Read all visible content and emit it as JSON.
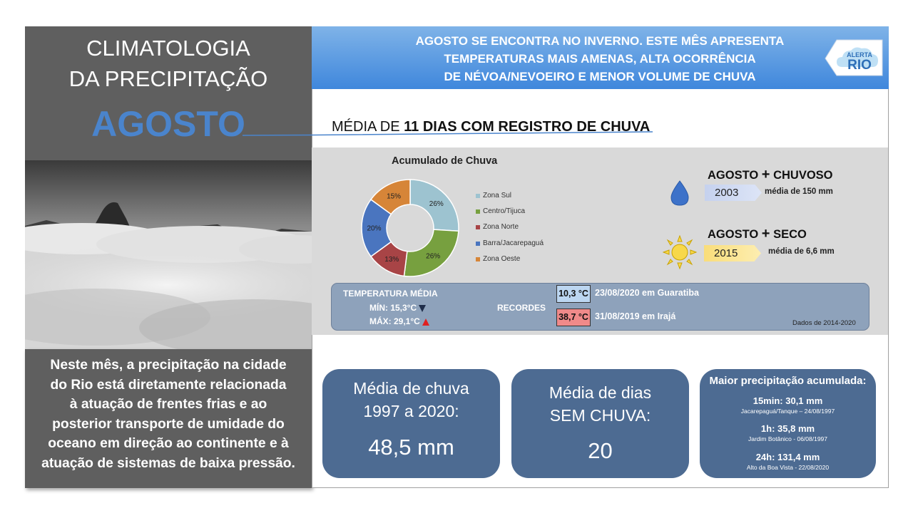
{
  "left": {
    "title_line1": "CLIMATOLOGIA",
    "title_line2": "DA PRECIPITAÇÃO",
    "month": "AGOSTO",
    "description_lines": [
      "Neste mês, a precipitação na cidade",
      "do Rio está diretamente relacionada",
      "à atuação de frentes frias e ao",
      "posterior transporte de umidade do",
      "oceano em direção ao continente e à",
      "atuação de sistemas de baixa pressão."
    ]
  },
  "banner": {
    "lines": [
      "AGOSTO SE ENCONTRA NO INVERNO. ESTE MÊS APRESENTA",
      "TEMPERATURAS MAIS AMENAS, ALTA OCORRÊNCIA",
      "DE NÉVOA/NEVOEIRO E MENOR VOLUME DE CHUVA"
    ],
    "logo_top": "ALERTA",
    "logo_bottom": "RIO",
    "logo_icon": "cloud-logo-icon"
  },
  "headline": {
    "prefix": "MÉDIA DE ",
    "bold": "11 DIAS COM REGISTRO DE CHUVA"
  },
  "chart_data": {
    "type": "pie",
    "title": "Acumulado de Chuva",
    "categories": [
      "Zona Sul",
      "Centro/Tijuca",
      "Zona Norte",
      "Barra/Jacarepaguá",
      "Zona Oeste"
    ],
    "values": [
      26,
      26,
      13,
      20,
      15
    ],
    "labels": [
      "26%",
      "26%",
      "13%",
      "20%",
      "15%"
    ],
    "colors": [
      "#9dc3d0",
      "#77a03f",
      "#a84446",
      "#4a75bf",
      "#d68538"
    ],
    "legend_position": "right",
    "donut": true
  },
  "records": {
    "chuvoso": {
      "heading_prefix": "AGOSTO ",
      "plus": "+",
      "heading_suffix": " CHUVOSO",
      "year": "2003",
      "media": "média de 150 mm",
      "icon": "raindrop-icon"
    },
    "seco": {
      "heading_prefix": "AGOSTO ",
      "plus": "+",
      "heading_suffix": " SECO",
      "year": "2015",
      "media": "média de 6,6 mm",
      "icon": "sun-icon"
    }
  },
  "temperature": {
    "title": "TEMPERATURA MÉDIA",
    "min": "MÍN: 15,3°C",
    "max": "MÁX: 29,1°C",
    "records_label": "RECORDES",
    "record_min_value": "10,3 °C",
    "record_min_desc": "23/08/2020  em Guaratiba",
    "record_max_value": "38,7 °C",
    "record_max_desc": "31/08/2019  em Irajá",
    "source": "Dados de 2014-2020"
  },
  "cards": {
    "media_chuva": {
      "title_line1": "Média de chuva",
      "title_line2": "1997 a 2020:",
      "value": "48,5 mm"
    },
    "dias_sem_chuva": {
      "title_line1": "Média  de dias",
      "title_line2": "SEM CHUVA:",
      "value": "20"
    },
    "maior_precipitacao": {
      "title": "Maior precipitação acumulada:",
      "items": [
        {
          "value": "15min: 30,1 mm",
          "location": "Jacarepaguá/Tanque – 24/08/1997"
        },
        {
          "value": "1h: 35,8 mm",
          "location": "Jardim Botânico - 06/08/1997"
        },
        {
          "value": "24h: 131,4 mm",
          "location": "Alto da Boa Vista - 22/08/2020"
        }
      ]
    }
  },
  "colors": {
    "accent_blue": "#4a84cc",
    "card_blue": "#4d6b92",
    "panel_gray": "#5f5f5f",
    "record_min_bg": "#bcd6f1",
    "record_max_bg": "#f08a8a"
  }
}
